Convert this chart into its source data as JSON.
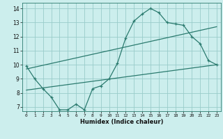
{
  "xlabel": "Humidex (Indice chaleur)",
  "background_color": "#cceeed",
  "grid_color": "#99ccca",
  "line_color": "#2a7a6e",
  "xlim": [
    -0.5,
    23.5
  ],
  "ylim": [
    6.7,
    14.4
  ],
  "xticks": [
    0,
    1,
    2,
    3,
    4,
    5,
    6,
    7,
    8,
    9,
    10,
    11,
    12,
    13,
    14,
    15,
    16,
    17,
    18,
    19,
    20,
    21,
    22,
    23
  ],
  "yticks": [
    7,
    8,
    9,
    10,
    11,
    12,
    13,
    14
  ],
  "line1_x": [
    0,
    1,
    2,
    3,
    4,
    5,
    6,
    7,
    8,
    9,
    10,
    11,
    12,
    13,
    14,
    15,
    16,
    17,
    18,
    19,
    20,
    21,
    22,
    23
  ],
  "line1_y": [
    9.9,
    9.0,
    8.3,
    7.7,
    6.8,
    6.8,
    7.2,
    6.8,
    8.3,
    8.5,
    9.0,
    10.1,
    11.9,
    13.1,
    13.6,
    14.0,
    13.7,
    13.0,
    12.9,
    12.8,
    12.0,
    11.5,
    10.3,
    10.0
  ],
  "line2_x": [
    0,
    23
  ],
  "line2_y": [
    9.7,
    12.7
  ],
  "line3_x": [
    0,
    23
  ],
  "line3_y": [
    8.2,
    10.0
  ]
}
